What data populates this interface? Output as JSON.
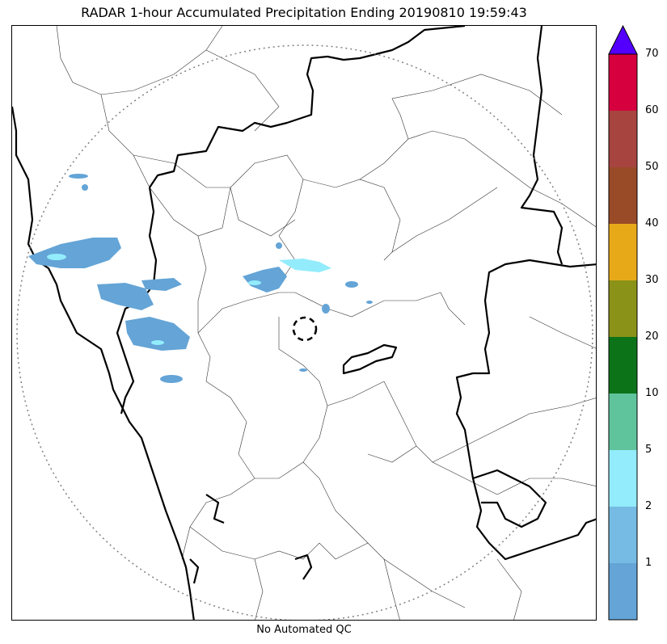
{
  "title": "RADAR 1-hour Accumulated Precipitation Ending 20190810 19:59:43",
  "footnote": "No Automated QC",
  "colorbar": {
    "tick_labels": [
      "1",
      "2",
      "5",
      "10",
      "20",
      "30",
      "40",
      "50",
      "60",
      "70"
    ],
    "colors": [
      "#64a4d6",
      "#76bbe3",
      "#93ecfc",
      "#5fc49b",
      "#0d7319",
      "#8b9218",
      "#e8a919",
      "#994a27",
      "#a74440",
      "#d6003f"
    ],
    "extend_color": "#5400ff"
  },
  "map": {
    "range_ring_color": "#808080",
    "radar_marker": "dashed-circle",
    "precip_colors": [
      "#64a4d6",
      "#93ecfc",
      "#5fc49b"
    ]
  }
}
